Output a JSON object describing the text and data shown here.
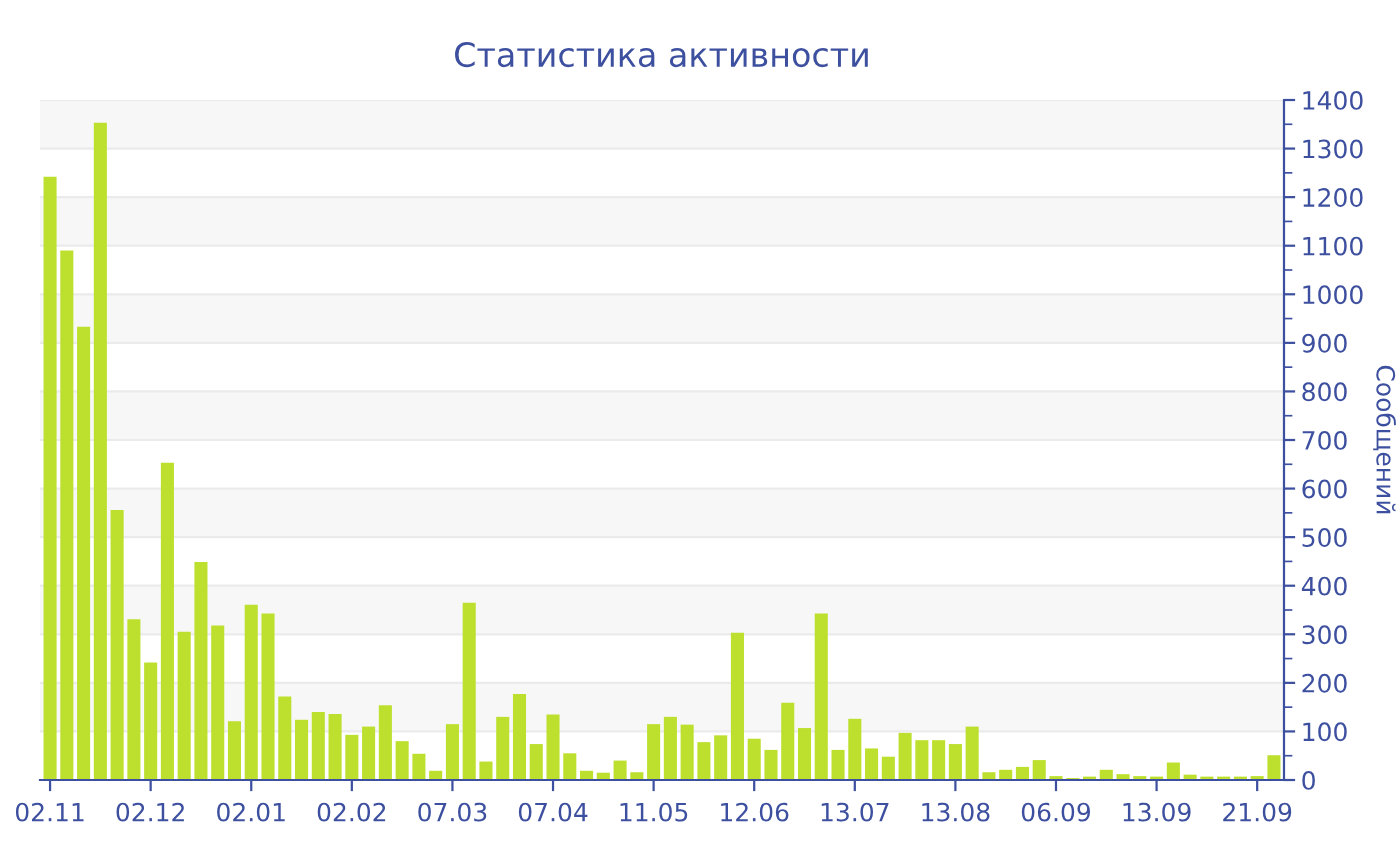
{
  "chart_data": {
    "type": "bar",
    "title": "Статистика активности",
    "ylabel": "Сообщений",
    "categories": [
      "02.11",
      null,
      null,
      null,
      null,
      null,
      "02.12",
      null,
      null,
      null,
      null,
      null,
      "02.01",
      null,
      null,
      null,
      null,
      null,
      "02.02",
      null,
      null,
      null,
      null,
      null,
      "07.03",
      null,
      null,
      null,
      null,
      null,
      "07.04",
      null,
      null,
      null,
      null,
      null,
      "11.05",
      null,
      null,
      null,
      null,
      null,
      "12.06",
      null,
      null,
      null,
      null,
      null,
      "13.07",
      null,
      null,
      null,
      null,
      null,
      "13.08",
      null,
      null,
      null,
      null,
      null,
      "06.09",
      null,
      null,
      null,
      null,
      null,
      "13.09",
      null,
      null,
      null,
      null,
      null,
      "21.09",
      null
    ],
    "values": [
      1242,
      1090,
      933,
      1353,
      556,
      331,
      242,
      653,
      305,
      449,
      318,
      121,
      361,
      343,
      172,
      124,
      140,
      136,
      93,
      110,
      154,
      80,
      54,
      19,
      115,
      365,
      38,
      130,
      177,
      74,
      135,
      55,
      19,
      15,
      40,
      16,
      115,
      130,
      114,
      78,
      92,
      303,
      85,
      62,
      159,
      107,
      343,
      62,
      126,
      65,
      48,
      97,
      82,
      82,
      74,
      110,
      16,
      21,
      27,
      41,
      8,
      4,
      7,
      21,
      12,
      8,
      7,
      36,
      11,
      7,
      7,
      7,
      8,
      51
    ],
    "color": "#bde02f",
    "ylim": [
      0,
      1400
    ],
    "yticks": [
      0,
      100,
      200,
      300,
      400,
      500,
      600,
      700,
      800,
      900,
      1000,
      1100,
      1200,
      1300,
      1400
    ],
    "grid": "y"
  }
}
